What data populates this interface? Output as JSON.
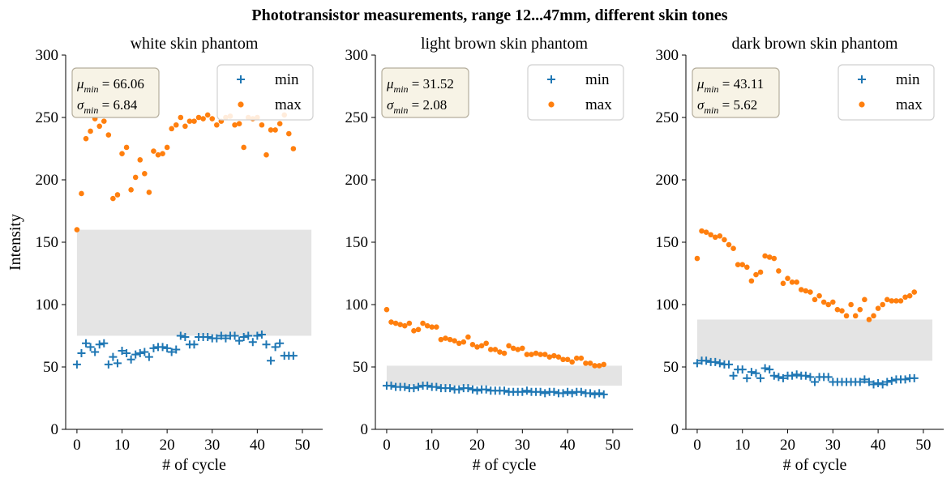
{
  "figure": {
    "suptitle": "Phototransistor measurements, range 12...47mm, different skin tones"
  },
  "colors": {
    "min_series": "#1f77b4",
    "max_series": "#ff7f0e",
    "band": "#e4e4e4",
    "stat_box_fill": "#f7f3e6",
    "stat_box_edge": "#b5ae9d"
  },
  "chart_data": [
    {
      "type": "scatter",
      "title": "white skin phantom",
      "xlabel": "# of cycle",
      "ylabel": "Intensity",
      "xlim": [
        -2.5,
        54.5
      ],
      "ylim": [
        0,
        300
      ],
      "xticks": [
        0,
        10,
        20,
        30,
        40,
        50
      ],
      "yticks": [
        0,
        50,
        100,
        150,
        200,
        250,
        300
      ],
      "band": {
        "x": [
          0,
          52
        ],
        "y": [
          75,
          160
        ]
      },
      "stats": {
        "mu_label": "μmin = 66.06",
        "sigma_label": "σmin = 6.84"
      },
      "legend": {
        "position": "upper right",
        "entries": [
          "min",
          "max"
        ]
      },
      "series": [
        {
          "name": "min",
          "marker": "plus",
          "x": [
            0,
            1,
            2,
            3,
            4,
            5,
            6,
            7,
            8,
            9,
            10,
            11,
            12,
            13,
            14,
            15,
            16,
            17,
            18,
            19,
            20,
            21,
            22,
            23,
            24,
            25,
            26,
            27,
            28,
            29,
            30,
            31,
            32,
            33,
            34,
            35,
            36,
            37,
            38,
            39,
            40,
            41,
            42,
            43,
            44,
            45,
            46,
            47,
            48
          ],
          "y": [
            52,
            61,
            69,
            66,
            62,
            68,
            69,
            52,
            58,
            53,
            63,
            61,
            56,
            60,
            61,
            62,
            58,
            65,
            66,
            66,
            65,
            62,
            64,
            75,
            74,
            68,
            68,
            74,
            74,
            74,
            73,
            73,
            75,
            73,
            75,
            75,
            71,
            74,
            75,
            70,
            75,
            76,
            68,
            55,
            66,
            69,
            59,
            59,
            59
          ]
        },
        {
          "name": "max",
          "marker": "circle",
          "x": [
            0,
            1,
            2,
            3,
            4,
            5,
            6,
            7,
            8,
            9,
            10,
            11,
            12,
            13,
            14,
            15,
            16,
            17,
            18,
            19,
            20,
            21,
            22,
            23,
            24,
            25,
            26,
            27,
            28,
            29,
            30,
            31,
            32,
            33,
            34,
            35,
            36,
            37,
            38,
            39,
            40,
            41,
            42,
            43,
            44,
            45,
            46,
            47,
            48
          ],
          "y": [
            160,
            189,
            233,
            239,
            249,
            243,
            247,
            236,
            185,
            188,
            221,
            226,
            192,
            202,
            216,
            205,
            190,
            223,
            220,
            221,
            226,
            241,
            244,
            250,
            243,
            247,
            247,
            250,
            249,
            252,
            249,
            244,
            247,
            250,
            251,
            244,
            245,
            226,
            250,
            249,
            250,
            244,
            220,
            240,
            240,
            245,
            252,
            237,
            225
          ]
        }
      ]
    },
    {
      "type": "scatter",
      "title": "light brown skin phantom",
      "xlabel": "# of cycle",
      "ylabel": "",
      "xlim": [
        -2.5,
        54.5
      ],
      "ylim": [
        0,
        300
      ],
      "xticks": [
        0,
        10,
        20,
        30,
        40,
        50
      ],
      "yticks": [
        0,
        50,
        100,
        150,
        200,
        250,
        300
      ],
      "band": {
        "x": [
          0,
          52
        ],
        "y": [
          35,
          51
        ]
      },
      "stats": {
        "mu_label": "μmin = 31.52",
        "sigma_label": "σmin = 2.08"
      },
      "legend": {
        "position": "upper right",
        "entries": [
          "min",
          "max"
        ]
      },
      "series": [
        {
          "name": "min",
          "marker": "plus",
          "x": [
            0,
            1,
            2,
            3,
            4,
            5,
            6,
            7,
            8,
            9,
            10,
            11,
            12,
            13,
            14,
            15,
            16,
            17,
            18,
            19,
            20,
            21,
            22,
            23,
            24,
            25,
            26,
            27,
            28,
            29,
            30,
            31,
            32,
            33,
            34,
            35,
            36,
            37,
            38,
            39,
            40,
            41,
            42,
            43,
            44,
            45,
            46,
            47,
            48
          ],
          "y": [
            35,
            35,
            34,
            34,
            34,
            33,
            33,
            34,
            35,
            35,
            34,
            34,
            33,
            33,
            33,
            32,
            32,
            33,
            33,
            32,
            31,
            32,
            32,
            31,
            31,
            31,
            31,
            30,
            30,
            30,
            30,
            31,
            30,
            30,
            30,
            29,
            30,
            30,
            29,
            29,
            30,
            29,
            30,
            30,
            29,
            29,
            28,
            29,
            28
          ]
        },
        {
          "name": "max",
          "marker": "circle",
          "x": [
            0,
            1,
            2,
            3,
            4,
            5,
            6,
            7,
            8,
            9,
            10,
            11,
            12,
            13,
            14,
            15,
            16,
            17,
            18,
            19,
            20,
            21,
            22,
            23,
            24,
            25,
            26,
            27,
            28,
            29,
            30,
            31,
            32,
            33,
            34,
            35,
            36,
            37,
            38,
            39,
            40,
            41,
            42,
            43,
            44,
            45,
            46,
            47,
            48
          ],
          "y": [
            96,
            86,
            85,
            84,
            83,
            85,
            79,
            80,
            85,
            83,
            82,
            82,
            72,
            73,
            72,
            71,
            69,
            70,
            74,
            68,
            66,
            67,
            69,
            64,
            64,
            62,
            61,
            67,
            65,
            64,
            65,
            60,
            60,
            61,
            60,
            60,
            58,
            59,
            58,
            56,
            56,
            54,
            57,
            57,
            53,
            53,
            51,
            51,
            52
          ]
        }
      ]
    },
    {
      "type": "scatter",
      "title": "dark brown skin phantom",
      "xlabel": "# of cycle",
      "ylabel": "",
      "xlim": [
        -2.5,
        54.5
      ],
      "ylim": [
        0,
        300
      ],
      "xticks": [
        0,
        10,
        20,
        30,
        40,
        50
      ],
      "yticks": [
        0,
        50,
        100,
        150,
        200,
        250,
        300
      ],
      "band": {
        "x": [
          0,
          52
        ],
        "y": [
          55,
          88
        ]
      },
      "stats": {
        "mu_label": "μmin = 43.11",
        "sigma_label": "σmin = 5.62"
      },
      "legend": {
        "position": "upper right",
        "entries": [
          "min",
          "max"
        ]
      },
      "series": [
        {
          "name": "min",
          "marker": "plus",
          "x": [
            0,
            1,
            2,
            3,
            4,
            5,
            6,
            7,
            8,
            9,
            10,
            11,
            12,
            13,
            14,
            15,
            16,
            17,
            18,
            19,
            20,
            21,
            22,
            23,
            24,
            25,
            26,
            27,
            28,
            29,
            30,
            31,
            32,
            33,
            34,
            35,
            36,
            37,
            38,
            39,
            40,
            41,
            42,
            43,
            44,
            45,
            46,
            47,
            48
          ],
          "y": [
            53,
            55,
            55,
            54,
            54,
            53,
            52,
            52,
            43,
            48,
            48,
            41,
            46,
            45,
            41,
            49,
            48,
            43,
            42,
            41,
            43,
            43,
            44,
            43,
            43,
            42,
            38,
            42,
            42,
            42,
            38,
            38,
            38,
            38,
            38,
            38,
            38,
            40,
            38,
            36,
            37,
            36,
            38,
            39,
            40,
            40,
            40,
            41,
            41
          ]
        },
        {
          "name": "max",
          "marker": "circle",
          "x": [
            0,
            1,
            2,
            3,
            4,
            5,
            6,
            7,
            8,
            9,
            10,
            11,
            12,
            13,
            14,
            15,
            16,
            17,
            18,
            19,
            20,
            21,
            22,
            23,
            24,
            25,
            26,
            27,
            28,
            29,
            30,
            31,
            32,
            33,
            34,
            35,
            36,
            37,
            38,
            39,
            40,
            41,
            42,
            43,
            44,
            45,
            46,
            47,
            48
          ],
          "y": [
            137,
            159,
            158,
            156,
            154,
            155,
            152,
            148,
            145,
            132,
            132,
            130,
            119,
            124,
            126,
            139,
            138,
            137,
            127,
            117,
            121,
            118,
            118,
            112,
            111,
            110,
            104,
            107,
            102,
            100,
            102,
            96,
            95,
            91,
            100,
            91,
            96,
            104,
            88,
            91,
            97,
            100,
            104,
            103,
            103,
            103,
            106,
            107,
            110
          ]
        }
      ]
    }
  ]
}
